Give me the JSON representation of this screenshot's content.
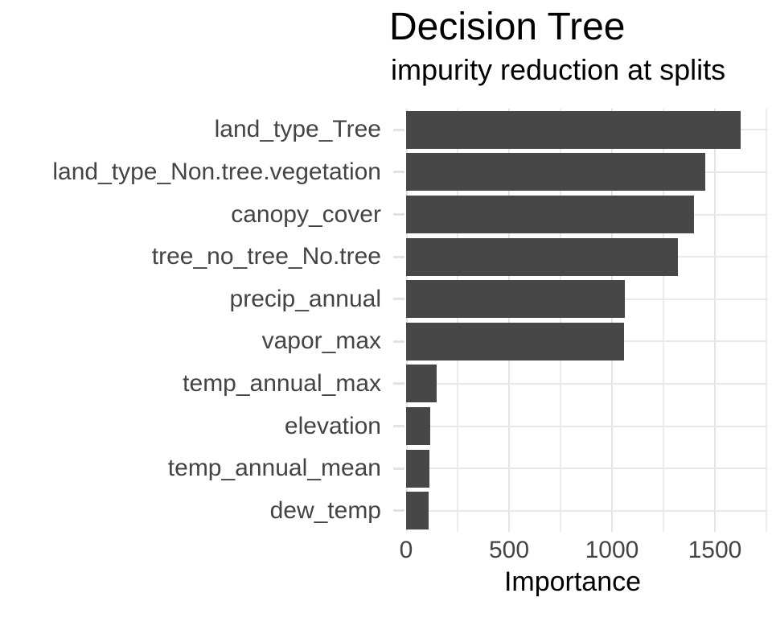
{
  "chart_data": {
    "type": "bar",
    "orientation": "horizontal",
    "title": "Decision Tree",
    "subtitle": "impurity reduction at splits",
    "xlabel": "Importance",
    "ylabel": "",
    "categories": [
      "land_type_Tree",
      "land_type_Non.tree.vegetation",
      "canopy_cover",
      "tree_no_tree_No.tree",
      "precip_annual",
      "vapor_max",
      "temp_annual_max",
      "elevation",
      "temp_annual_mean",
      "dew_temp"
    ],
    "values": [
      1625,
      1455,
      1400,
      1320,
      1062,
      1058,
      150,
      118,
      112,
      108
    ],
    "xlim": [
      0,
      1750
    ],
    "xticks": [
      0,
      500,
      1000,
      1500
    ],
    "minor_gridlines": [
      250,
      750,
      1250,
      1750
    ],
    "grid": "on",
    "legend": "none",
    "bar_color": "#474747",
    "major_grid_color": "#E4E4E4",
    "minor_grid_color": "#ECECEC",
    "axis_text_color": "#444444",
    "title_color": "#000000",
    "background_color": "#FFFFFF"
  }
}
